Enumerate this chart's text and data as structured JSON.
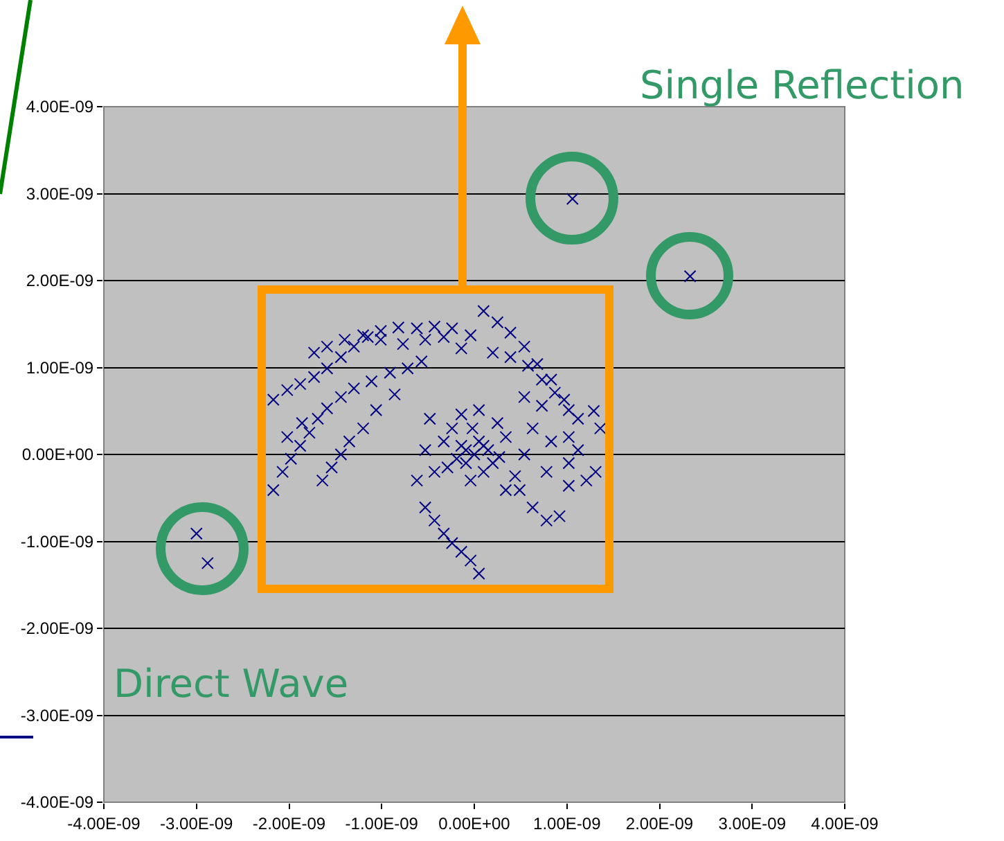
{
  "chart_data": {
    "type": "scatter",
    "marker": "cross",
    "grid": "y",
    "annotations": [
      "Single Reflection",
      "Direct Wave"
    ],
    "xlim": [
      -4e-09,
      4e-09
    ],
    "ylim": [
      -4e-09,
      4e-09
    ],
    "xticks": [
      {
        "value": -4e-09,
        "label": "-4.00E-09"
      },
      {
        "value": -3e-09,
        "label": "-3.00E-09"
      },
      {
        "value": -2e-09,
        "label": "-2.00E-09"
      },
      {
        "value": -1e-09,
        "label": "-1.00E-09"
      },
      {
        "value": 0,
        "label": "0.00E+00"
      },
      {
        "value": 1e-09,
        "label": "1.00E-09"
      },
      {
        "value": 2e-09,
        "label": "2.00E-09"
      },
      {
        "value": 3e-09,
        "label": "3.00E-09"
      },
      {
        "value": 4e-09,
        "label": "4.00E-09"
      }
    ],
    "yticks": [
      {
        "value": -4e-09,
        "label": "-4.00E-09"
      },
      {
        "value": -3e-09,
        "label": "-3.00E-09"
      },
      {
        "value": -2e-09,
        "label": "-2.00E-09"
      },
      {
        "value": -1e-09,
        "label": "-1.00E-09"
      },
      {
        "value": 0,
        "label": "0.00E+00"
      },
      {
        "value": 1e-09,
        "label": "1.00E-09"
      },
      {
        "value": 2e-09,
        "label": "2.00E-09"
      },
      {
        "value": 3e-09,
        "label": "3.00E-09"
      },
      {
        "value": 4e-09,
        "label": "4.00E-09"
      }
    ],
    "series": [
      {
        "color": "#000080",
        "x": [
          1.06e-09,
          2.33e-09,
          -3e-09,
          -2.88e-09,
          -2.17e-09,
          -2.02e-09,
          -1.88e-09,
          -1.73e-09,
          -1.59e-09,
          -1.44e-09,
          -1.3e-09,
          -1.15e-09,
          -1.01e-09,
          -8.2e-10,
          -6.2e-10,
          -4.3e-10,
          -2.4e-10,
          -4e-11,
          1e-10,
          2.5e-10,
          3.9e-10,
          5.4e-10,
          6.8e-10,
          8.3e-10,
          9.7e-10,
          1.12e-09,
          1.29e-09,
          1.36e-09,
          -1.73e-09,
          -1.59e-09,
          -1.4e-09,
          -1.2e-09,
          -1.01e-09,
          -7.7e-10,
          -5.3e-10,
          -3.3e-10,
          -1.4e-10,
          2e-10,
          3.9e-10,
          5.8e-10,
          7.3e-10,
          8.7e-10,
          1.02e-09,
          -2.17e-09,
          -2.07e-09,
          -1.98e-09,
          -1.88e-09,
          -1.78e-09,
          -1.69e-09,
          -1.59e-09,
          -1.44e-09,
          -1.3e-09,
          -1.11e-09,
          -9.1e-10,
          -7.2e-10,
          -5.7e-10,
          -1.64e-09,
          -1.54e-09,
          -1.44e-09,
          -1.35e-09,
          -1.2e-09,
          -1.06e-09,
          -8.6e-10,
          -2.02e-09,
          -1.86e-09,
          0,
          -9e-11,
          1e-10,
          -1.9e-10,
          2e-10,
          -3.3e-10,
          3.4e-10,
          -4.3e-10,
          4.4e-10,
          -2.4e-10,
          2.5e-10,
          -4e-11,
          -5.3e-10,
          5.4e-10,
          5e-11,
          -1.4e-10,
          6.3e-10,
          -4.8e-10,
          -6.2e-10,
          3.4e-10,
          1e-10,
          -9e-11,
          1.5e-10,
          5e-11,
          -1.4e-10,
          -2.9e-10,
          2.7e-10,
          -2e-11,
          4.9e-10,
          6.3e-10,
          7.8e-10,
          9.2e-10,
          1.02e-09,
          1.21e-09,
          1.31e-09,
          1.02e-09,
          7.8e-10,
          8.3e-10,
          1.02e-09,
          1.12e-09,
          7.3e-10,
          5.4e-10,
          -2.4e-10,
          -1.4e-10,
          -4e-11,
          5e-11,
          -3.3e-10,
          -4.3e-10,
          -5.3e-10
        ],
        "values": [
          2.94e-09,
          2.05e-09,
          -9.1e-10,
          -1.25e-09,
          6.3e-10,
          7.4e-10,
          8.1e-10,
          8.9e-10,
          9.9e-10,
          1.12e-09,
          1.24e-09,
          1.35e-09,
          1.42e-09,
          1.46e-09,
          1.45e-09,
          1.47e-09,
          1.45e-09,
          1.37e-09,
          1.65e-09,
          1.52e-09,
          1.4e-09,
          1.24e-09,
          1.04e-09,
          8.6e-10,
          6.3e-10,
          4.1e-10,
          5e-10,
          3e-10,
          1.17e-09,
          1.24e-09,
          1.32e-09,
          1.37e-09,
          1.32e-09,
          1.27e-09,
          1.32e-09,
          1.35e-09,
          1.22e-09,
          1.17e-09,
          1.12e-09,
          1.02e-09,
          8.6e-10,
          7.1e-10,
          5.1e-10,
          -4.1e-10,
          -2e-10,
          -5e-11,
          1e-10,
          2.5e-10,
          4.1e-10,
          5.3e-10,
          6.6e-10,
          7.6e-10,
          8.4e-10,
          9.4e-10,
          9.9e-10,
          1.07e-09,
          -3e-10,
          -1.5e-10,
          0,
          1.5e-10,
          3e-10,
          5.1e-10,
          6.9e-10,
          2e-10,
          3.6e-10,
          0,
          5e-11,
          1e-10,
          -5e-11,
          -1e-10,
          1.5e-10,
          2e-10,
          -2e-10,
          -2.5e-10,
          3e-10,
          3.6e-10,
          -3e-10,
          5e-11,
          0,
          5.1e-10,
          4.6e-10,
          3e-10,
          4.1e-10,
          -3e-10,
          -4.1e-10,
          -2e-10,
          -1e-10,
          5e-11,
          1.5e-10,
          1e-10,
          -1.5e-10,
          -3e-11,
          3e-10,
          -4.1e-10,
          -6.1e-10,
          -7.6e-10,
          -7.1e-10,
          -3.6e-10,
          -3e-10,
          -2e-10,
          -1e-10,
          -2e-10,
          1.5e-10,
          2e-10,
          5e-11,
          5.6e-10,
          6.6e-10,
          -1.02e-09,
          -1.12e-09,
          -1.22e-09,
          -1.37e-09,
          -9.1e-10,
          -7.6e-10,
          -6.1e-10
        ]
      }
    ]
  }
}
